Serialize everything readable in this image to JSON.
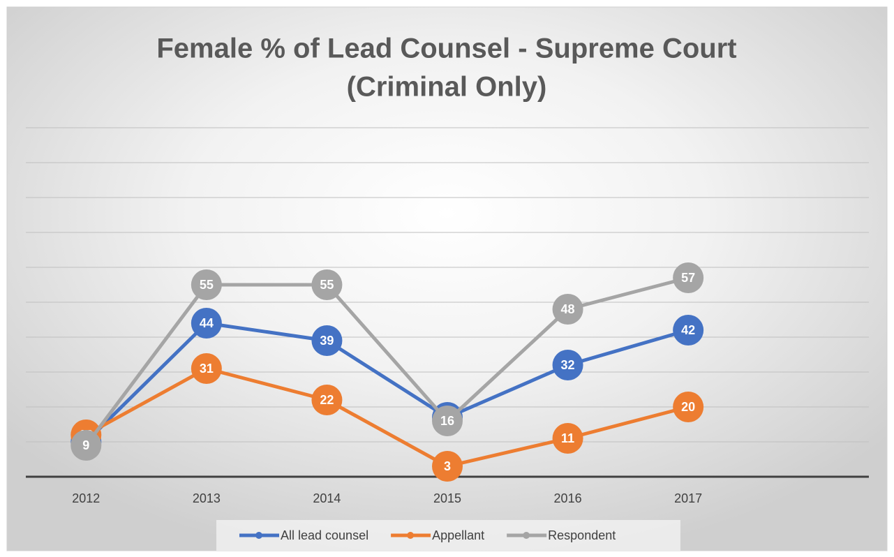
{
  "chart_data": {
    "type": "line",
    "title": [
      "Female % of Lead Counsel - Supreme Court",
      "(Criminal Only)"
    ],
    "categories": [
      "2012",
      "2013",
      "2014",
      "2015",
      "2016",
      "2017",
      null
    ],
    "series": [
      {
        "name": "All lead counsel",
        "color": "#4472c4",
        "values": [
          10,
          44,
          39,
          17,
          32,
          42,
          null
        ]
      },
      {
        "name": "Appellant",
        "color": "#ed7d31",
        "values": [
          12,
          31,
          22,
          3,
          11,
          20,
          null
        ]
      },
      {
        "name": "Respondent",
        "color": "#a5a5a5",
        "values": [
          9,
          55,
          55,
          16,
          48,
          57,
          null
        ]
      }
    ],
    "ylim": [
      0,
      100
    ],
    "yticks": [
      0,
      10,
      20,
      30,
      40,
      50,
      60,
      70,
      80,
      90,
      100
    ],
    "grid": true,
    "legend": "bottom"
  }
}
